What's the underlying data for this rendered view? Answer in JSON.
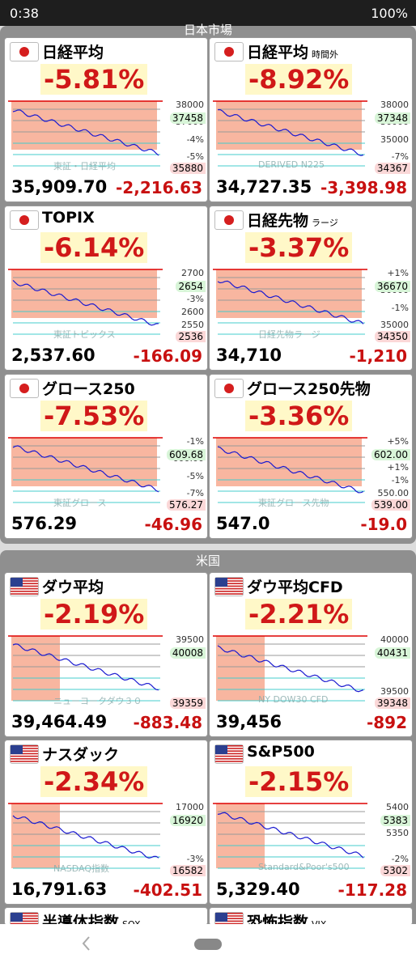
{
  "status_bar": {
    "time": "0:38",
    "battery": "100%"
  },
  "sections": [
    {
      "title": "日本市場",
      "cards": [
        {
          "name": "日経平均",
          "pct": "-5.81%",
          "price": "35,909.70",
          "change": "-2,216.63",
          "scale": [
            "38000",
            "37000",
            "-4%",
            "-5%"
          ],
          "high_tag": "37458",
          "low_tag": "35880",
          "watermark": "東証・日経平均"
        },
        {
          "name": "日経平均",
          "sub": "時間外",
          "pct": "-8.92%",
          "price": "34,727.35",
          "change": "-3,398.98",
          "scale": [
            "38000",
            "36000",
            "35000",
            "-7%"
          ],
          "high_tag": "37348",
          "low_tag": "34367",
          "watermark": "DERIVED N225"
        },
        {
          "name": "TOPIX",
          "pct": "-6.14%",
          "price": "2,537.60",
          "change": "-166.09",
          "scale": [
            "2700",
            "-1%",
            "-3%",
            "2600",
            "2550"
          ],
          "high_tag": "2654",
          "low_tag": "2536",
          "watermark": "東証トピックス"
        },
        {
          "name": "日経先物",
          "sub": "ラージ",
          "pct": "-3.37%",
          "price": "34,710",
          "change": "-1,210",
          "scale": [
            "+1%",
            "36000",
            "-1%",
            "35000"
          ],
          "high_tag": "36670",
          "low_tag": "34350",
          "watermark": "日経先物ラージ"
        },
        {
          "name": "グロース250",
          "pct": "-7.53%",
          "price": "576.29",
          "change": "-46.96",
          "scale": [
            "-1%",
            "600.00",
            "-5%",
            "-7%"
          ],
          "high_tag": "609.68",
          "low_tag": "576.27",
          "watermark": "東証グロース"
        },
        {
          "name": "グロース250先物",
          "pct": "-3.36%",
          "price": "547.0",
          "change": "-19.0",
          "scale": [
            "+5%",
            "+3%",
            "+1%",
            "-1%",
            "550.00"
          ],
          "high_tag": "602.00",
          "low_tag": "539.00",
          "watermark": "東証グロース先物"
        }
      ]
    },
    {
      "title": "米国",
      "cards": [
        {
          "name": "ダウ平均",
          "pct": "-2.19%",
          "price": "39,464.49",
          "change": "-883.48",
          "scale": [
            "39500"
          ],
          "high_tag": "40008",
          "low_tag": "39359",
          "watermark": "ニューヨークダウ３０"
        },
        {
          "name": "ダウ平均CFD",
          "pct": "-2.21%",
          "price": "39,456",
          "change": "-892",
          "scale": [
            "40000",
            "39500"
          ],
          "high_tag": "40431",
          "low_tag": "39348",
          "watermark": "NY DOW30 CFD"
        },
        {
          "name": "ナスダック",
          "pct": "-2.34%",
          "price": "16,791.63",
          "change": "-402.51",
          "scale": [
            "17000",
            "-3%"
          ],
          "high_tag": "16920",
          "low_tag": "16582",
          "watermark": "NASDAQ指数"
        },
        {
          "name": "S&P500",
          "pct": "-2.15%",
          "price": "5,329.40",
          "change": "-117.28",
          "scale": [
            "5400",
            "5350",
            "-2%"
          ],
          "high_tag": "5383",
          "low_tag": "5302",
          "watermark": "Standard&Poor's500"
        },
        {
          "name": "半導体指数",
          "sub": "SOX"
        },
        {
          "name": "恐怖指数",
          "sub": "VIX"
        }
      ]
    }
  ]
}
